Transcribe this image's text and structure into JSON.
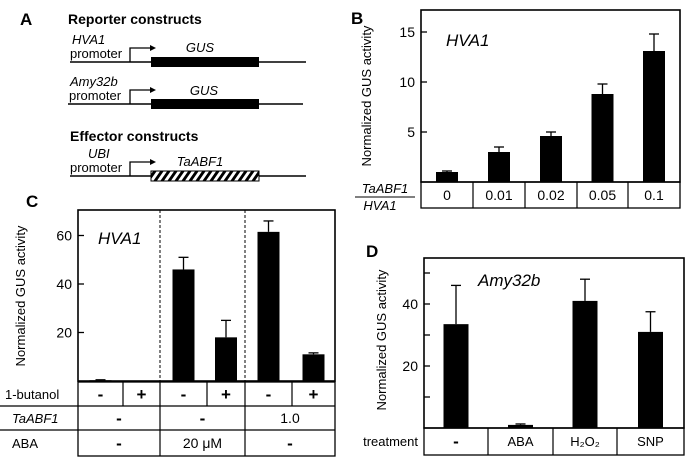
{
  "panel_a": {
    "label": "A",
    "reporter_title": "Reporter constructs",
    "reporters": [
      {
        "promoter_name": "HVA1",
        "promoter_word": "promoter",
        "gene": "GUS"
      },
      {
        "promoter_name": "Amy32b",
        "promoter_word": "promoter",
        "gene": "GUS"
      }
    ],
    "effector_title": "Effector constructs",
    "effector": {
      "promoter_name": "UBI",
      "promoter_word": "promoter",
      "gene": "TaABF1"
    }
  },
  "chart_data": [
    {
      "panel": "B",
      "type": "bar",
      "title": "HVA1",
      "ylabel": "Normalized GUS activity",
      "ylim": [
        0,
        17.2
      ],
      "yticks": [
        5,
        10,
        15
      ],
      "ytick_labels": [
        "5",
        "10",
        "15"
      ],
      "x_row_label_top": "TaABF1",
      "x_row_label_bottom": "HVA1",
      "categories": [
        "0",
        "0.01",
        "0.02",
        "0.05",
        "0.1"
      ],
      "values": [
        1.0,
        3.0,
        4.6,
        8.8,
        13.1
      ],
      "error_upper": [
        1.1,
        3.5,
        5.0,
        9.8,
        14.8
      ]
    },
    {
      "panel": "C",
      "type": "bar",
      "title": "HVA1",
      "ylabel": "Normalized GUS activity",
      "ylim": [
        0,
        71
      ],
      "yticks": [
        20,
        40,
        60
      ],
      "ytick_labels": [
        "20",
        "40",
        "60"
      ],
      "rows": [
        {
          "label": "1-butanol",
          "cells": [
            "-",
            "+",
            "-",
            "+",
            "-",
            "+"
          ]
        },
        {
          "label": "TaABF1",
          "cells": [
            "-",
            "-",
            "1.0"
          ]
        },
        {
          "label": "ABA",
          "cells": [
            "-",
            "20 μM",
            "-"
          ]
        }
      ],
      "values": [
        0.3,
        0,
        46,
        18,
        61.5,
        11
      ],
      "error_upper": [
        0.5,
        0,
        51,
        25,
        66,
        11.6
      ]
    },
    {
      "panel": "D",
      "type": "bar",
      "title": "Amy32b",
      "ylabel": "Normalized GUS activity",
      "ylim": [
        0,
        55
      ],
      "yticks": [
        10,
        20,
        30,
        40,
        50
      ],
      "ytick_labels": [
        "",
        "20",
        "",
        "40",
        ""
      ],
      "row_label": "treatment",
      "categories": [
        "-",
        "ABA",
        "H₂O₂",
        "SNP"
      ],
      "values": [
        33.5,
        1.0,
        41,
        31
      ],
      "error_upper": [
        46,
        1.3,
        48,
        37.5
      ]
    }
  ]
}
